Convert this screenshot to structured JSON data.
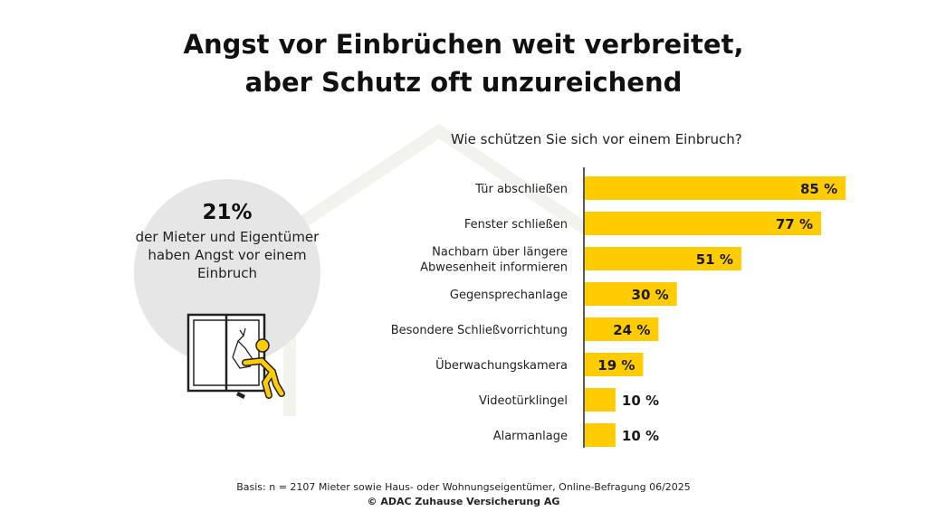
{
  "title_line1": "Angst vor Einbrüchen weit verbreitet,",
  "title_line2": "aber Schutz oft unzureichend",
  "callout": {
    "percent": "21%",
    "text": "der Mieter und Eigentümer haben Angst vor einem Einbruch",
    "icon": "burglar-breaking-window-icon"
  },
  "footer": {
    "basis": "Basis: n = 2107 Mieter sowie Haus- oder Wohnungseigentümer, Online-Befragung 06/2025",
    "copyright": "© ADAC Zuhause Versicherung AG"
  },
  "colors": {
    "bar": "#FFCC00",
    "circle": "#E6E6E6"
  },
  "chart_data": {
    "type": "bar",
    "orientation": "horizontal",
    "title": "Wie schützen Sie sich vor einem Einbruch?",
    "categories": [
      "Tür abschließen",
      "Fenster schließen",
      "Nachbarn über längere Abwesenheit informieren",
      "Gegensprechanlage",
      "Besondere Schließvorrichtung",
      "Überwachungskamera",
      "Videotürklingel",
      "Alarmanlage"
    ],
    "category_lines": [
      [
        "Tür abschließen"
      ],
      [
        "Fenster schließen"
      ],
      [
        "Nachbarn über längere",
        "Abwesenheit informieren"
      ],
      [
        "Gegensprechanlage"
      ],
      [
        "Besondere Schließvorrichtung"
      ],
      [
        "Überwachungskamera"
      ],
      [
        "Videotürklingel"
      ],
      [
        "Alarmanlage"
      ]
    ],
    "values": [
      85,
      77,
      51,
      30,
      24,
      19,
      10,
      10
    ],
    "labels": [
      "85 %",
      "77 %",
      "51 %",
      "30 %",
      "24 %",
      "19 %",
      "10 %",
      "10 %"
    ],
    "unit": "%",
    "xlim": [
      0,
      100
    ],
    "grid": false
  }
}
